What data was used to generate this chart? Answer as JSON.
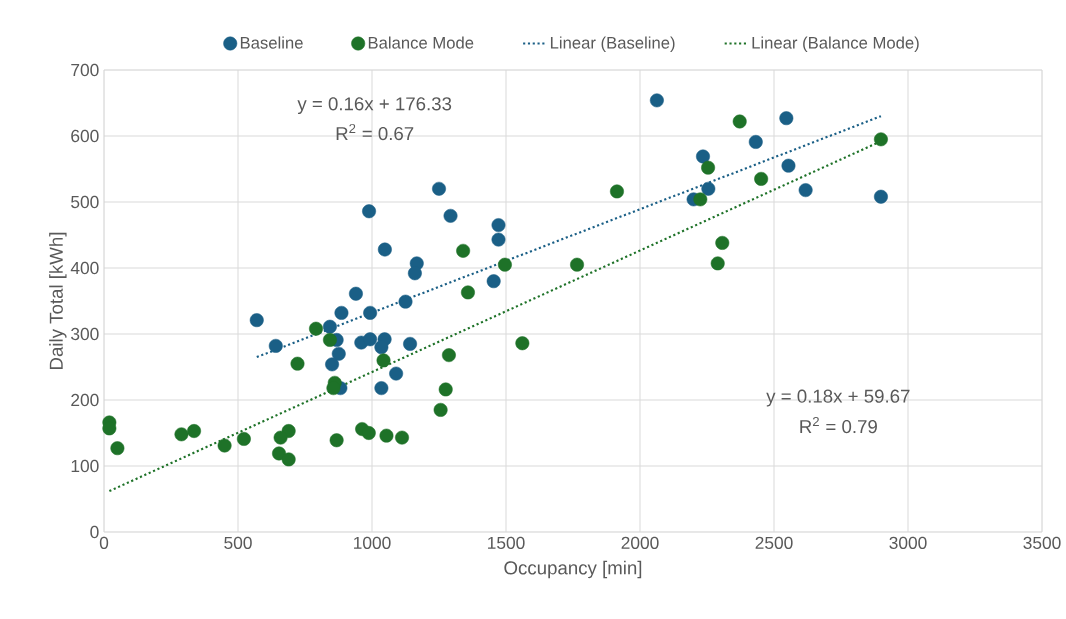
{
  "chart_data": {
    "type": "scatter",
    "xlabel": "Occupancy [min]",
    "ylabel": "Daily Total [kWh]",
    "xlim": [
      0,
      3500
    ],
    "xticks": [
      0,
      500,
      1000,
      1500,
      2000,
      2500,
      3000,
      3500
    ],
    "ylim": [
      0,
      700
    ],
    "yticks": [
      0,
      100,
      200,
      300,
      400,
      500,
      600,
      700
    ],
    "grid": true,
    "legend": "top",
    "marker": "circle",
    "annotations": [
      "y = 0.16x + 176.33",
      "R$^{2}$ = 0.67",
      "y = 0.18x + 59.67",
      "R$^{2}$ = 0.79"
    ],
    "series": [
      {
        "name": "Baseline",
        "type": "scatter",
        "color": "#1a5f86",
        "x": [
          989,
          1048,
          1167,
          1160,
          940,
          1125,
          570,
          886,
          993,
          843,
          868,
          960,
          993,
          1047,
          1035,
          1142,
          641,
          876,
          851,
          1090,
          882,
          1035,
          1250,
          1293,
          1472,
          1472,
          1454,
          2063,
          2235,
          2255,
          2200,
          2546,
          2432,
          2554,
          2618,
          2899
        ],
        "values": [
          486,
          428,
          407,
          392,
          361,
          349,
          321,
          332,
          332,
          311,
          291,
          287,
          292,
          292,
          280,
          285,
          282,
          270,
          254,
          240,
          218,
          218,
          520,
          479,
          465,
          443,
          380,
          654,
          569,
          520,
          504,
          627,
          591,
          555,
          518,
          508
        ]
      },
      {
        "name": "Balance Mode",
        "type": "scatter",
        "color": "#1e7228",
        "x": [
          791,
          843,
          722,
          1043,
          861,
          856,
          20,
          20,
          50,
          289,
          336,
          450,
          522,
          689,
          659,
          653,
          689,
          868,
          963,
          988,
          1054,
          1112,
          1340,
          1358,
          1496,
          1765,
          1561,
          1287,
          1275,
          1256,
          1914,
          2372,
          2254,
          2225,
          2307,
          2290,
          2452,
          2899
        ],
        "values": [
          308,
          291,
          255,
          260,
          226,
          218,
          166,
          157,
          127,
          148,
          153,
          131,
          141,
          153,
          143,
          119,
          110,
          139,
          156,
          150,
          146,
          143,
          426,
          363,
          405,
          405,
          286,
          268,
          216,
          185,
          516,
          622,
          552,
          504,
          438,
          407,
          535,
          595
        ]
      },
      {
        "name": "Linear (Baseline)",
        "type": "line",
        "marker": "none",
        "line_style": "dotted",
        "color": "#1a5f86",
        "x": [
          570,
          2899
        ],
        "values": [
          265,
          630
        ]
      },
      {
        "name": "Linear (Balance Mode)",
        "type": "line",
        "marker": "none",
        "line_style": "dotted",
        "color": "#1e7228",
        "x": [
          20,
          2899
        ],
        "values": [
          62,
          592
        ]
      }
    ]
  }
}
